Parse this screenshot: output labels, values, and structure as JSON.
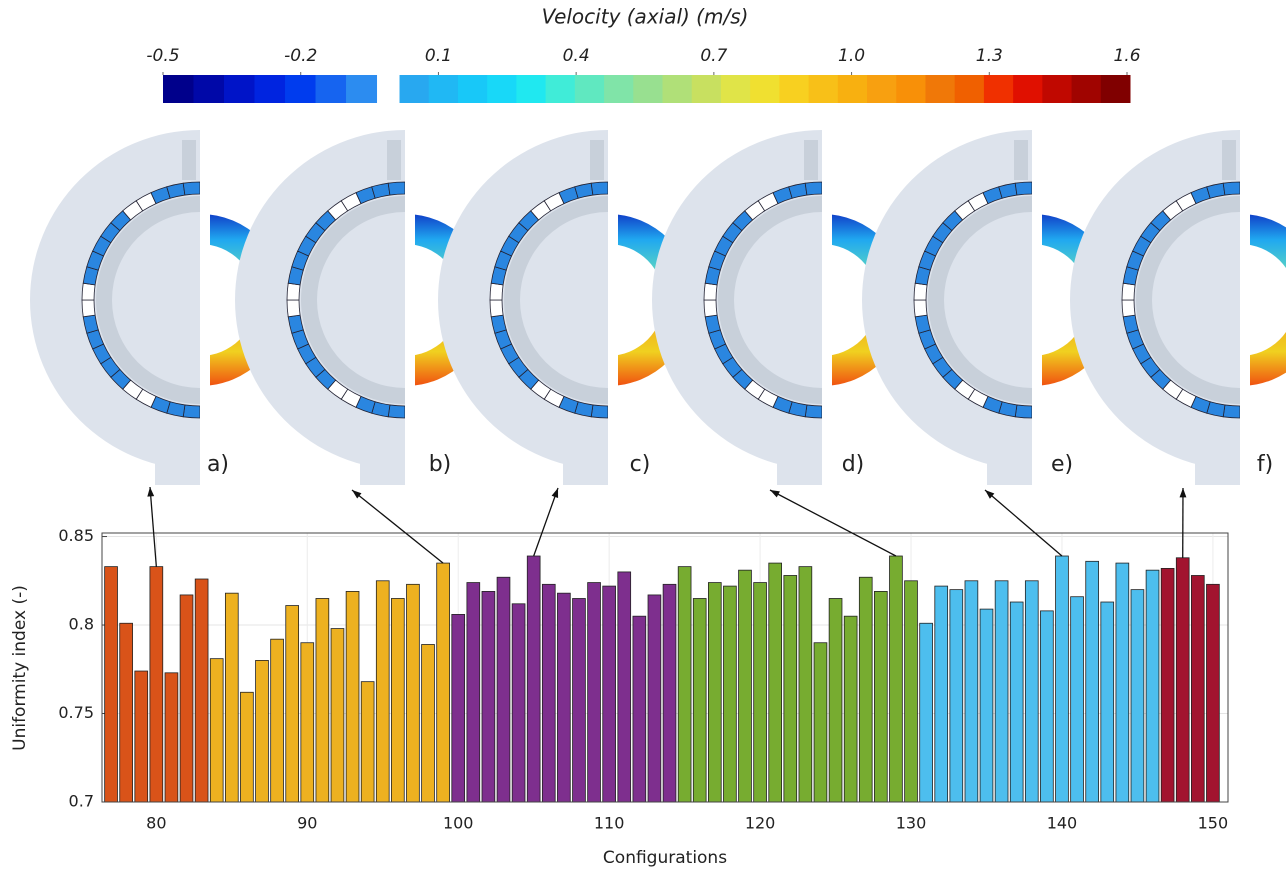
{
  "chart_data": {
    "type": "bar",
    "xlabel": "Configurations",
    "ylabel": "Uniformity index (-)",
    "xlim": [
      76.4,
      151
    ],
    "xticks": [
      80,
      90,
      100,
      110,
      120,
      130,
      140,
      150
    ],
    "ylim": [
      0.7,
      0.852
    ],
    "yticks": [
      0.7,
      0.75,
      0.8,
      0.85
    ],
    "grid": true,
    "series": [
      {
        "color": "#d95319",
        "x": [
          77,
          78,
          79,
          80,
          81,
          82,
          83
        ],
        "values": [
          0.833,
          0.801,
          0.774,
          0.833,
          0.773,
          0.817,
          0.826
        ]
      },
      {
        "color": "#edb120",
        "x": [
          84,
          85,
          86,
          87,
          88,
          89,
          90,
          91,
          92,
          93,
          94,
          95,
          96,
          97,
          98,
          99
        ],
        "values": [
          0.781,
          0.818,
          0.762,
          0.78,
          0.792,
          0.811,
          0.79,
          0.815,
          0.798,
          0.819,
          0.768,
          0.825,
          0.815,
          0.823,
          0.789,
          0.835
        ]
      },
      {
        "color": "#7e2f8e",
        "x": [
          100,
          101,
          102,
          103,
          104,
          105,
          106,
          107,
          108,
          109,
          110,
          111,
          112,
          113,
          114
        ],
        "values": [
          0.806,
          0.824,
          0.819,
          0.827,
          0.812,
          0.839,
          0.823,
          0.818,
          0.815,
          0.824,
          0.822,
          0.83,
          0.805,
          0.817,
          0.823
        ]
      },
      {
        "color": "#77ac30",
        "x": [
          115,
          116,
          117,
          118,
          119,
          120,
          121,
          122,
          123,
          124,
          125,
          126,
          127,
          128,
          129,
          130
        ],
        "values": [
          0.833,
          0.815,
          0.824,
          0.822,
          0.831,
          0.824,
          0.835,
          0.828,
          0.833,
          0.79,
          0.815,
          0.805,
          0.827,
          0.819,
          0.839,
          0.825
        ]
      },
      {
        "color": "#4dbeee",
        "x": [
          131,
          132,
          133,
          134,
          135,
          136,
          137,
          138,
          139,
          140,
          141,
          142,
          143,
          144,
          145,
          146
        ],
        "values": [
          0.801,
          0.822,
          0.82,
          0.825,
          0.809,
          0.825,
          0.813,
          0.825,
          0.808,
          0.839,
          0.816,
          0.836,
          0.813,
          0.835,
          0.82,
          0.831
        ]
      },
      {
        "color": "#a2142f",
        "x": [
          147,
          148,
          149,
          150
        ],
        "values": [
          0.832,
          0.838,
          0.828,
          0.823
        ]
      }
    ],
    "panels": [
      {
        "label": "a)",
        "target": 80
      },
      {
        "label": "b)",
        "target": 99
      },
      {
        "label": "c)",
        "target": 105
      },
      {
        "label": "d)",
        "target": 129
      },
      {
        "label": "e)",
        "target": 140
      },
      {
        "label": "f)",
        "target": 148
      }
    ],
    "colorbar": {
      "title": "Velocity (axial) (m/s)",
      "lim": [
        -0.5,
        1.6
      ],
      "ticks": [
        -0.5,
        -0.2,
        0.1,
        0.4,
        0.7,
        {
          "value": 1,
          "label": "1.0"
        },
        1.3,
        1.6
      ],
      "negative_colors": [
        "#00008b",
        "#0008a8",
        "#0014c8",
        "#0024e0",
        "#003cee",
        "#1664f0",
        "#2c8cf0"
      ],
      "positive_colors": [
        "#28a8f0",
        "#20b8f4",
        "#18c8f8",
        "#18d8f8",
        "#20e8f0",
        "#40ecd8",
        "#60e8c0",
        "#80e4a8",
        "#98e090",
        "#b0e078",
        "#c8e060",
        "#e0e448",
        "#f0e030",
        "#f8d020",
        "#f8c018",
        "#f8b010",
        "#f8a010",
        "#f89008",
        "#f07808",
        "#f06000",
        "#f03000",
        "#e01000",
        "#c00800",
        "#a00400",
        "#800000"
      ]
    }
  }
}
